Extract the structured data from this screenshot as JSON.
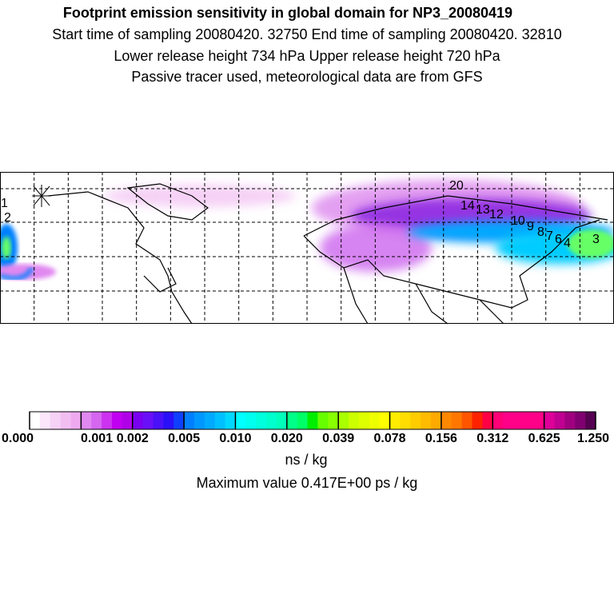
{
  "title": "Footprint emission sensitivity in global domain for NP3_20080419",
  "subtitle_lines": [
    "Start time of sampling 20080420. 32750     End time of sampling 20080420. 32810",
    "Lower release height  734 hPa      Upper release height  720 hPa",
    "Passive tracer used, meteorological data are from GFS"
  ],
  "trajectory_labels": [
    "1",
    "2",
    "3",
    "4",
    "6",
    "7",
    "8",
    "9",
    "10",
    "12",
    "13",
    "14",
    "20"
  ],
  "colorbar": {
    "labels": [
      "0.000",
      "0.001",
      "0.002",
      "0.005",
      "0.010",
      "0.020",
      "0.039",
      "0.078",
      "0.156",
      "0.312",
      "0.625",
      "1.250"
    ],
    "colors": [
      "#ffffff",
      "#fbe6fb",
      "#f6d2f6",
      "#f2bef2",
      "#eeaaee",
      "#e088f0",
      "#d466f0",
      "#cc33f0",
      "#c000f0",
      "#b000e8",
      "#7a00f0",
      "#6a10f8",
      "#4a10f8",
      "#2a10f8",
      "#1040ff",
      "#0080ff",
      "#0098ff",
      "#00aaff",
      "#00c0ff",
      "#00d8ff",
      "#00ffff",
      "#00ffee",
      "#00ffdd",
      "#00ffcc",
      "#00ffbb",
      "#00ff88",
      "#00ff66",
      "#00ee00",
      "#66ff00",
      "#88ff00",
      "#aaff00",
      "#ccff00",
      "#ddff00",
      "#eeff00",
      "#ffff00",
      "#ffee00",
      "#ffdd00",
      "#ffcc00",
      "#ffbb00",
      "#ffaa00",
      "#ff8800",
      "#ff7700",
      "#ff5500",
      "#ff2200",
      "#ff0044",
      "#ff0077",
      "#ff0088",
      "#ff0088",
      "#ff0088",
      "#ff0088",
      "#dd0099",
      "#c00090",
      "#a00080",
      "#800070",
      "#550050"
    ],
    "unit": "ns / kg"
  },
  "max_value_text": "Maximum value  0.417E+00 ps / kg"
}
